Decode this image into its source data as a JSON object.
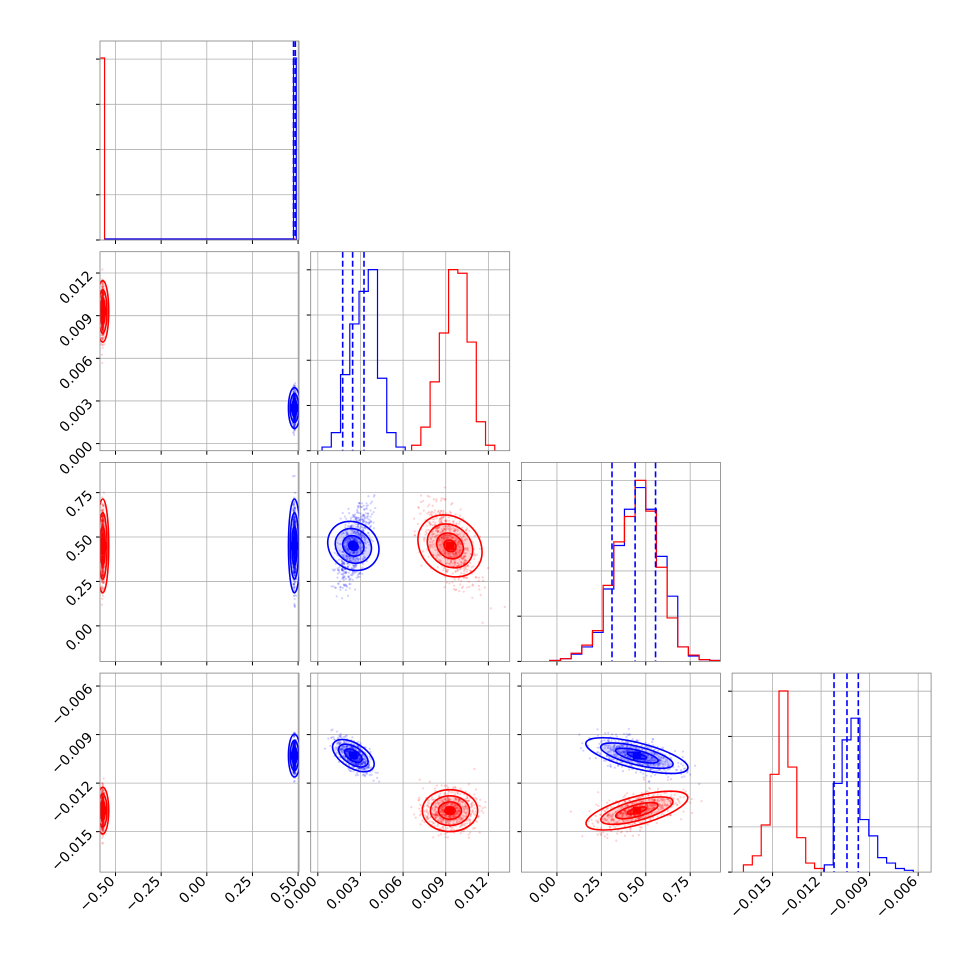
{
  "chart_data": {
    "type": "corner",
    "title": "",
    "grid": true,
    "colors": {
      "series_a": "#ff0000",
      "series_b": "#0000ff"
    },
    "series": [
      {
        "color": "red",
        "means": [
          -0.57,
          0.0093,
          0.45,
          -0.0137
        ]
      },
      {
        "color": "blue",
        "means": [
          0.48,
          0.0025,
          0.45,
          -0.0103
        ]
      }
    ],
    "parameters": [
      {
        "range": [
          -0.585,
          0.505
        ],
        "ticks": [
          -0.5,
          -0.25,
          0.0,
          0.25,
          0.5
        ],
        "tick_labels": [
          "−0.50",
          "−0.25",
          "0.00",
          "0.25",
          "0.50"
        ]
      },
      {
        "range": [
          -0.0005,
          0.0135
        ],
        "ticks": [
          0.0,
          0.003,
          0.006,
          0.009,
          0.012
        ],
        "tick_labels": [
          "0.000",
          "0.003",
          "0.006",
          "0.009",
          "0.012"
        ]
      },
      {
        "range": [
          -0.2,
          0.92
        ],
        "ticks": [
          0.0,
          0.25,
          0.5,
          0.75
        ],
        "tick_labels": [
          "0.00",
          "0.25",
          "0.50",
          "0.75"
        ]
      },
      {
        "range": [
          -0.0175,
          -0.0052
        ],
        "ticks": [
          -0.015,
          -0.012,
          -0.009,
          -0.006
        ],
        "tick_labels": [
          "−0.015",
          "−0.012",
          "−0.009",
          "−0.006"
        ]
      }
    ],
    "quantile_lines_blue": [
      [
        0.475,
        0.485
      ],
      [
        0.00175,
        0.00245,
        0.00325
      ],
      [
        0.31,
        0.44,
        0.555
      ],
      [
        -0.0112,
        -0.0104,
        -0.0097
      ]
    ],
    "histograms": [
      {
        "edges": [
          -0.585,
          -0.57,
          -0.56,
          0.47,
          0.48,
          0.49
        ],
        "red": [
          1.0,
          0.0
        ],
        "blue": [
          1.0,
          0.0
        ]
      },
      {
        "bin_width": 0.00065,
        "start": 0.0003,
        "blue": [
          0.02,
          0.1,
          0.42,
          0.7,
          0.88,
          1.0,
          0.4,
          0.1,
          0.02
        ],
        "red_start": 0.0066,
        "red": [
          0.03,
          0.13,
          0.38,
          0.65,
          1.0,
          0.98,
          0.6,
          0.16,
          0.03
        ]
      },
      {
        "bin_width": 0.06,
        "start": -0.04,
        "blue": [
          0.005,
          0.015,
          0.04,
          0.08,
          0.16,
          0.4,
          0.64,
          0.84,
          0.96,
          0.84,
          0.58,
          0.36,
          0.08,
          0.03,
          0.01,
          0.005
        ],
        "red": [
          0.005,
          0.015,
          0.045,
          0.09,
          0.17,
          0.42,
          0.66,
          0.8,
          1.0,
          0.83,
          0.52,
          0.24,
          0.08,
          0.035,
          0.01,
          0.005
        ]
      },
      {
        "bin_width": 0.00055,
        "red_start": -0.0168,
        "red": [
          0.04,
          0.09,
          0.26,
          0.54,
          1.0,
          0.58,
          0.19,
          0.05,
          0.02
        ],
        "blue_start": -0.0118,
        "blue": [
          0.04,
          0.49,
          0.73,
          0.85,
          0.29,
          0.2,
          0.08,
          0.05,
          0.02,
          0.01
        ]
      }
    ],
    "panels_2d": [
      {
        "row": 1,
        "col": 0
      },
      {
        "row": 2,
        "col": 0
      },
      {
        "row": 2,
        "col": 1,
        "red_corr": -0.55,
        "blue_corr": 0.6
      },
      {
        "row": 3,
        "col": 0
      },
      {
        "row": 3,
        "col": 1,
        "red_corr": 0.0,
        "blue_corr": -0.6
      },
      {
        "row": 3,
        "col": 2,
        "red_corr": 0.55,
        "blue_corr": -0.55
      }
    ],
    "spreads": {
      "red": [
        0.004,
        0.0009,
        0.11,
        0.0006
      ],
      "blue": [
        0.004,
        0.0006,
        0.11,
        0.00055
      ]
    }
  }
}
